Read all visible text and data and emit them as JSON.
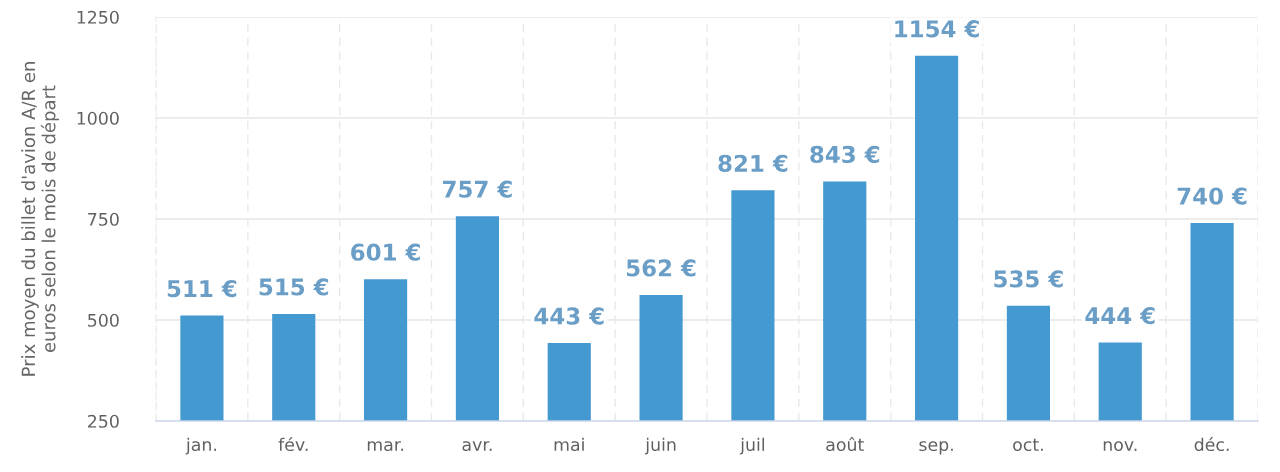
{
  "chart_data": {
    "type": "bar",
    "ylabel": "Prix moyen du billet d'avion A/R en\neuros selon le mois de départ",
    "categories": [
      "jan.",
      "fév.",
      "mar.",
      "avr.",
      "mai",
      "juin",
      "juil",
      "août",
      "sep.",
      "oct.",
      "nov.",
      "déc."
    ],
    "values": [
      511,
      515,
      601,
      757,
      443,
      562,
      821,
      843,
      1154,
      535,
      444,
      740
    ],
    "value_labels": [
      "511 €",
      "515 €",
      "601 €",
      "757 €",
      "443 €",
      "562 €",
      "821 €",
      "843 €",
      "1154 €",
      "535 €",
      "444 €",
      "740 €"
    ],
    "color": "#4599d1",
    "ylim": [
      250,
      1250
    ],
    "yticks": [
      250,
      500,
      750,
      1000,
      1250
    ],
    "grid": true,
    "legend": false
  }
}
